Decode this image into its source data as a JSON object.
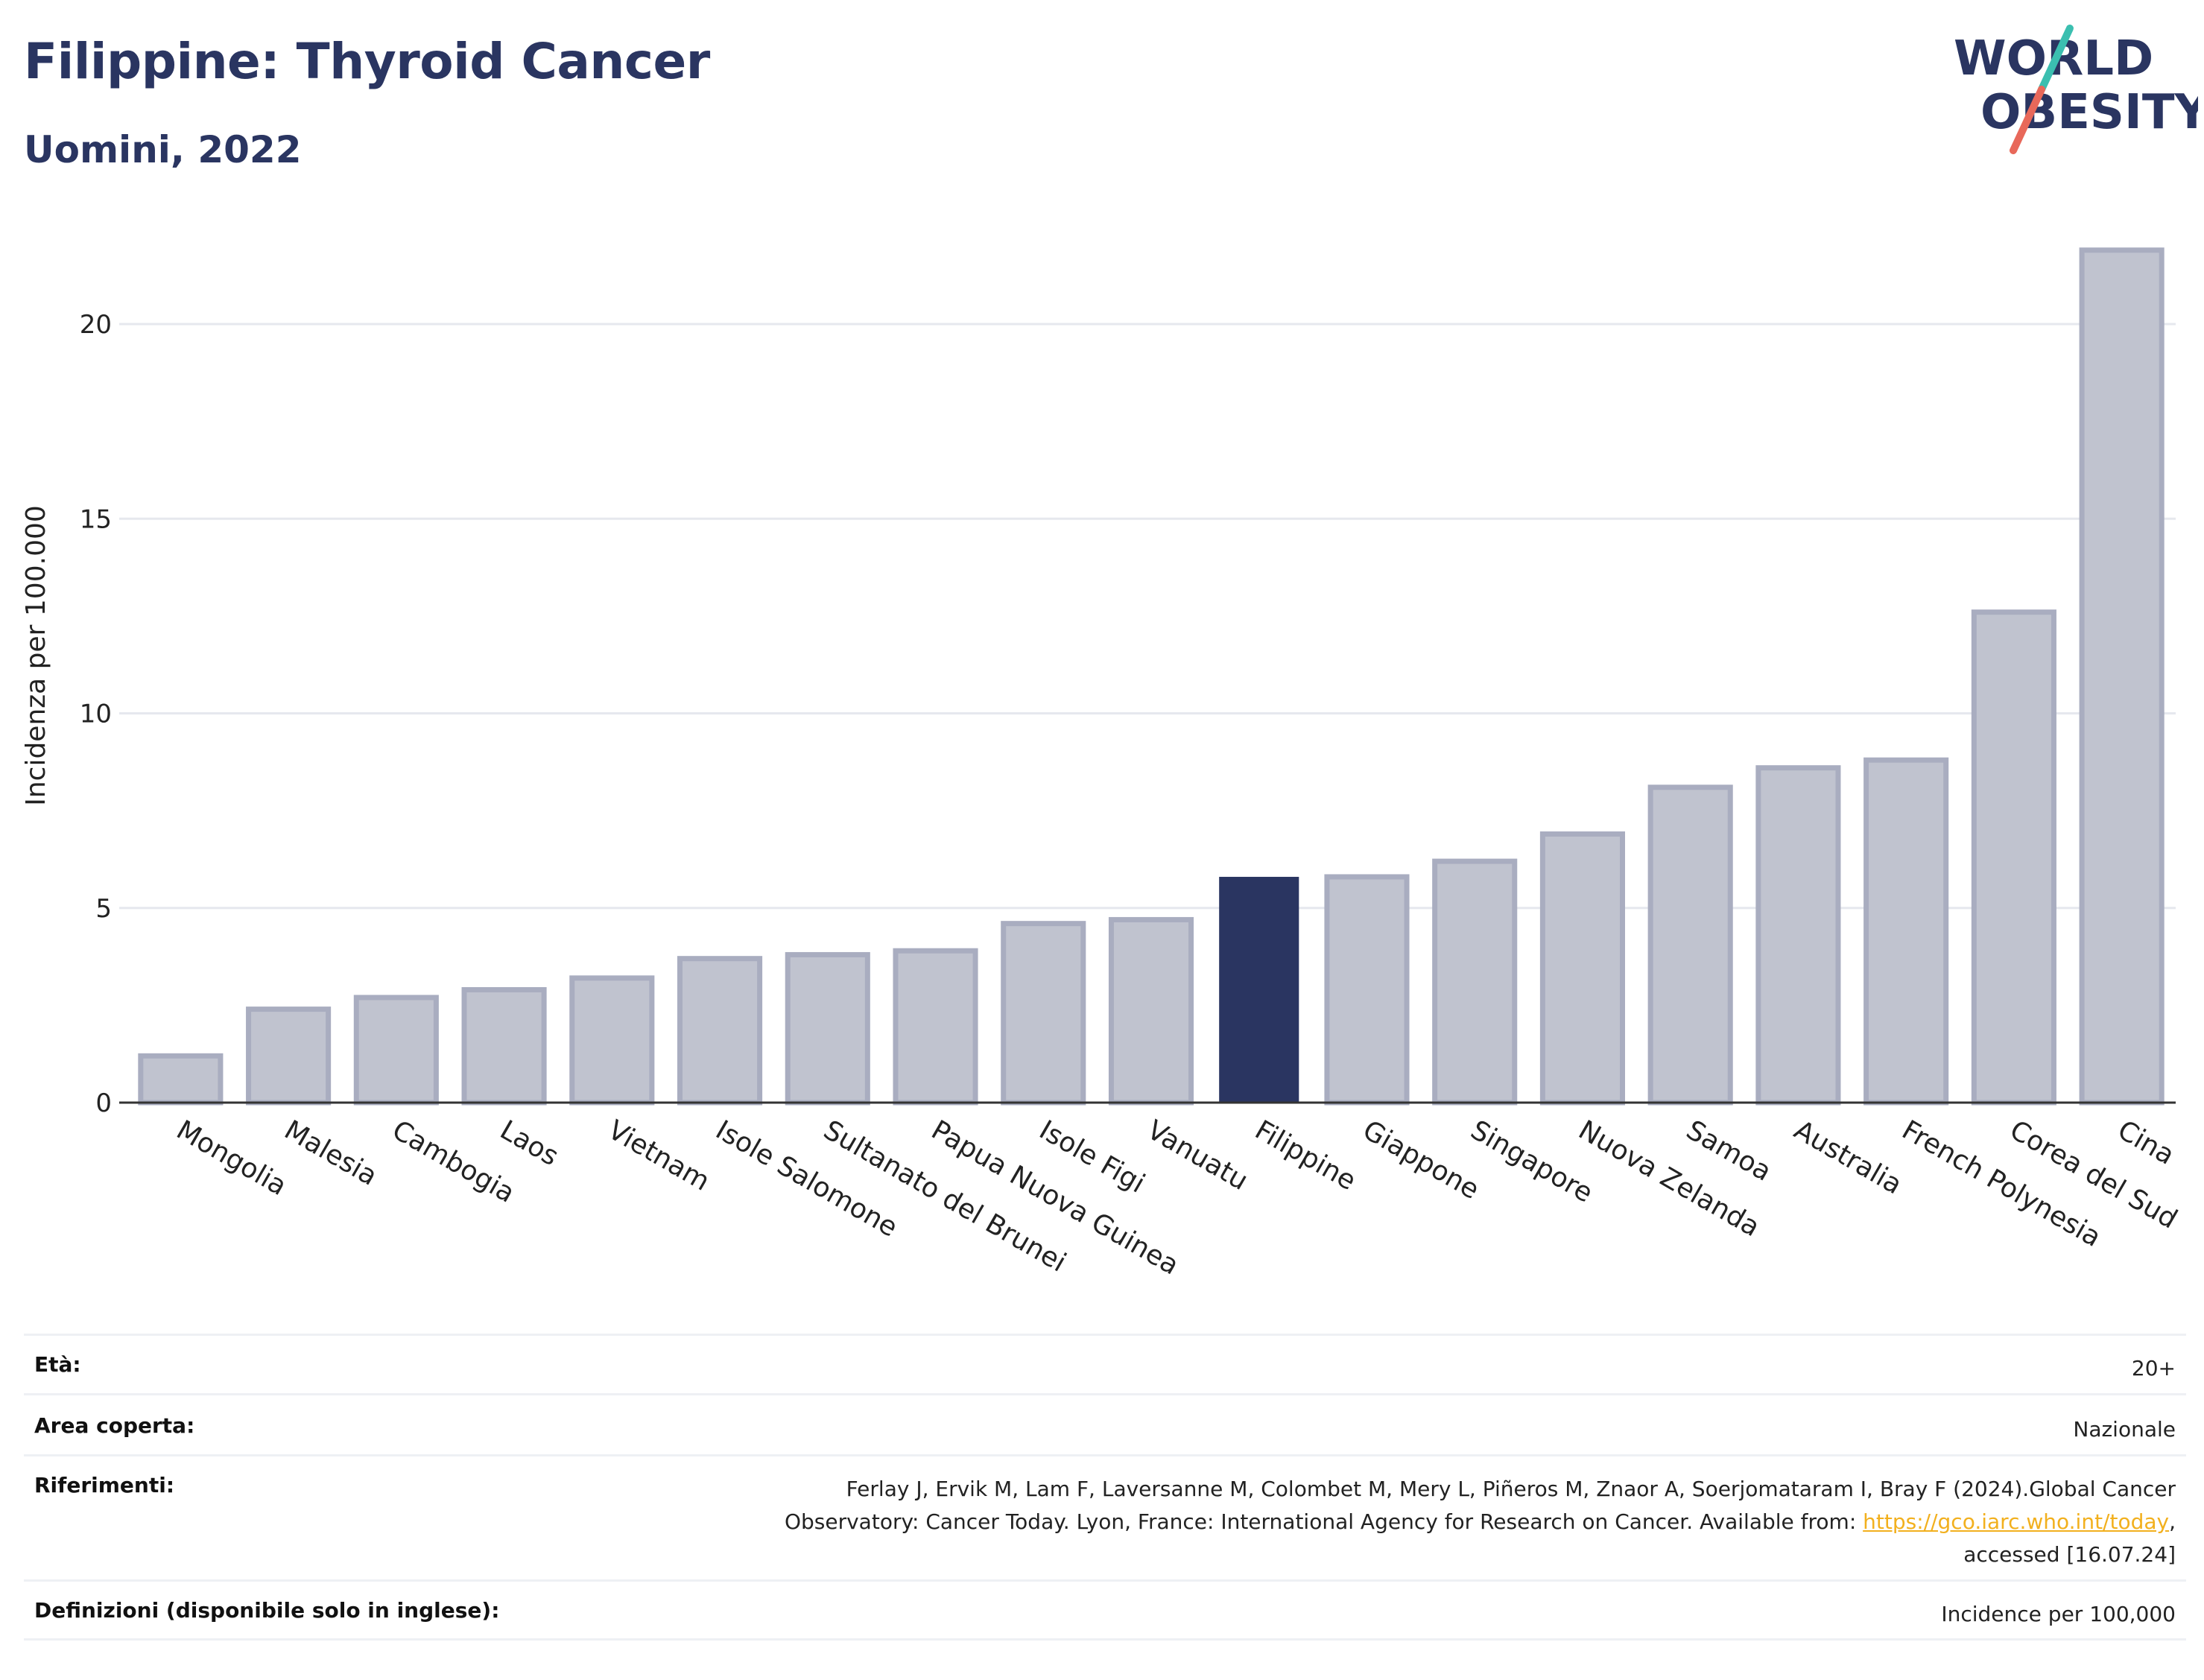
{
  "header": {
    "title": "Filippine: Thyroid Cancer",
    "subtitle": "Uomini, 2022"
  },
  "logo": {
    "line1": "WORLD",
    "line2": "OBESITY"
  },
  "colors": {
    "highlight": "#2a3561",
    "bar_fill": "#c0c3cf",
    "bar_stroke": "#a9adc0",
    "grid": "#e6e8ee",
    "logo_text": "#2a3561",
    "logo_slash_top": "#3bbfb0",
    "logo_slash_bottom": "#e8685a"
  },
  "chart_data": {
    "type": "bar",
    "ylabel": "Incidenza per 100.000",
    "ylim": [
      0,
      22
    ],
    "yticks": [
      0,
      5,
      10,
      15,
      20
    ],
    "grid": true,
    "highlight": "Filippine",
    "categories": [
      "Mongolia",
      "Malesia",
      "Cambogia",
      "Laos",
      "Vietnam",
      "Isole Salomone",
      "Sultanato del Brunei",
      "Papua Nuova Guinea",
      "Isole Figi",
      "Vanuatu",
      "Filippine",
      "Giappone",
      "Singapore",
      "Nuova Zelanda",
      "Samoa",
      "Australia",
      "French Polynesia",
      "Corea del Sud",
      "Cina"
    ],
    "values": [
      1.2,
      2.4,
      2.7,
      2.9,
      3.2,
      3.7,
      3.8,
      3.9,
      4.6,
      4.7,
      5.8,
      5.8,
      6.2,
      6.9,
      8.1,
      8.6,
      8.8,
      12.6,
      21.9
    ]
  },
  "info": {
    "age_label": "Età:",
    "age_value": "20+",
    "area_label": "Area coperta:",
    "area_value": "Nazionale",
    "ref_label": "Riferimenti:",
    "ref_line1": "Ferlay J, Ervik M, Lam F, Laversanne M, Colombet M, Mery L, Piñeros M, Znaor A, Soerjomataram I, Bray F (2024).Global Cancer",
    "ref_line2": "Observatory: Cancer Today. Lyon, France: International Agency for Research on Cancer. Available from: ",
    "ref_link": "https://gco.iarc.who.int/today",
    "ref_line2_end": ",",
    "ref_line3": "accessed [16.07.24]",
    "def_label": "Definizioni (disponibile solo in inglese):",
    "def_value": "Incidence per 100,000"
  }
}
